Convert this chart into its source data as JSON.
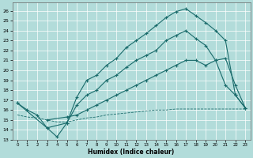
{
  "xlabel": "Humidex (Indice chaleur)",
  "xlim": [
    -0.5,
    23.5
  ],
  "ylim": [
    13,
    26.8
  ],
  "yticks": [
    13,
    14,
    15,
    16,
    17,
    18,
    19,
    20,
    21,
    22,
    23,
    24,
    25,
    26
  ],
  "xticks": [
    0,
    1,
    2,
    3,
    4,
    5,
    6,
    7,
    8,
    9,
    10,
    11,
    12,
    13,
    14,
    15,
    16,
    17,
    18,
    19,
    20,
    21,
    22,
    23
  ],
  "bg_color": "#b2dcda",
  "line_color": "#1a6b6b",
  "grid_color": "#ffffff",
  "line1_x": [
    0,
    1,
    2,
    3,
    4,
    5,
    6,
    7,
    8,
    9,
    10,
    11,
    12,
    13,
    14,
    15,
    16,
    17,
    18,
    19,
    20,
    21,
    22,
    23
  ],
  "line1_y": [
    16.7,
    16.0,
    15.5,
    14.2,
    13.3,
    14.7,
    17.3,
    19.0,
    19.5,
    20.5,
    21.2,
    22.3,
    23.0,
    23.7,
    24.5,
    25.3,
    25.9,
    26.2,
    25.5,
    24.8,
    24.0,
    23.0,
    17.5,
    16.2
  ],
  "line2_x": [
    0,
    3,
    5,
    6,
    7,
    8,
    9,
    10,
    11,
    12,
    13,
    14,
    15,
    16,
    17,
    18,
    19,
    20,
    21,
    22,
    23
  ],
  "line2_y": [
    16.7,
    14.2,
    14.7,
    16.5,
    17.5,
    18.0,
    19.0,
    19.5,
    20.3,
    21.0,
    21.5,
    22.0,
    23.0,
    23.5,
    24.0,
    23.2,
    22.5,
    21.0,
    18.5,
    17.5,
    16.2
  ],
  "line3_x": [
    3,
    5,
    6,
    7,
    8,
    9,
    10,
    11,
    12,
    13,
    14,
    15,
    16,
    17,
    18,
    19,
    20,
    21,
    22,
    23
  ],
  "line3_y": [
    15.0,
    15.3,
    15.5,
    16.0,
    16.5,
    17.0,
    17.5,
    18.0,
    18.5,
    19.0,
    19.5,
    20.0,
    20.5,
    21.0,
    21.0,
    20.5,
    21.0,
    21.2,
    18.5,
    16.2
  ],
  "line4_x": [
    0,
    1,
    2,
    3,
    4,
    5,
    6,
    7,
    8,
    9,
    10,
    11,
    12,
    13,
    14,
    15,
    16,
    17,
    18,
    19,
    20,
    21,
    22,
    23
  ],
  "line4_y": [
    15.5,
    15.3,
    15.2,
    15.0,
    14.8,
    14.8,
    15.0,
    15.2,
    15.3,
    15.5,
    15.6,
    15.7,
    15.8,
    15.9,
    16.0,
    16.0,
    16.1,
    16.1,
    16.1,
    16.1,
    16.1,
    16.1,
    16.1,
    16.1
  ],
  "figsize": [
    3.2,
    2.0
  ],
  "dpi": 100
}
